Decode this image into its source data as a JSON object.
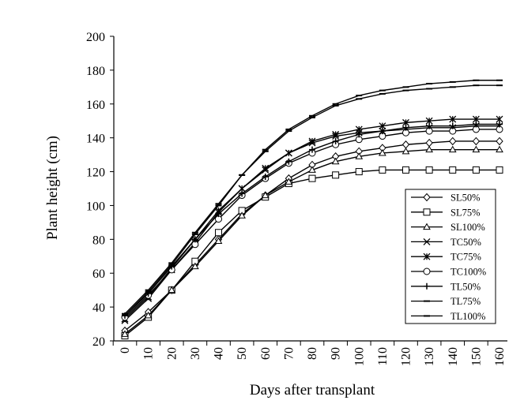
{
  "chart_data": {
    "type": "line",
    "title": "",
    "xlabel": "Days after transplant",
    "ylabel": "Plant height (cm)",
    "x": [
      0,
      10,
      20,
      30,
      40,
      50,
      60,
      70,
      80,
      90,
      100,
      110,
      120,
      130,
      140,
      150,
      160
    ],
    "x_tick_labels": [
      "0",
      "10",
      "20",
      "30",
      "40",
      "50",
      "60",
      "70",
      "80",
      "90",
      "100",
      "110",
      "120",
      "130",
      "140",
      "150",
      "160"
    ],
    "xlim": [
      0,
      160
    ],
    "ylim": [
      20,
      200
    ],
    "y_ticks": [
      20,
      40,
      60,
      80,
      100,
      120,
      140,
      160,
      180,
      200
    ],
    "y_tick_labels": [
      "20",
      "40",
      "60",
      "80",
      "100",
      "120",
      "140",
      "160",
      "180",
      "200"
    ],
    "grid": false,
    "legend_position": "right",
    "series": [
      {
        "name": "SL50%",
        "marker": "diamond",
        "values": [
          26,
          37,
          50,
          65,
          80,
          95,
          106,
          116,
          124,
          129,
          132,
          134,
          136,
          137,
          138,
          138,
          138
        ]
      },
      {
        "name": "SL75%",
        "marker": "square",
        "values": [
          23,
          34,
          50,
          67,
          84,
          97,
          105,
          113,
          116,
          118,
          120,
          121,
          121,
          121,
          121,
          121,
          121
        ]
      },
      {
        "name": "SL100%",
        "marker": "triangle",
        "values": [
          24,
          35,
          50,
          64,
          79,
          94,
          106,
          114,
          121,
          126,
          129,
          131,
          132,
          133,
          133,
          133,
          133
        ]
      },
      {
        "name": "TC50%",
        "marker": "x",
        "values": [
          32,
          45,
          62,
          78,
          96,
          110,
          121,
          131,
          137,
          141,
          143,
          144,
          145,
          146,
          146,
          147,
          147
        ]
      },
      {
        "name": "TC75%",
        "marker": "star",
        "values": [
          33,
          46,
          63,
          80,
          97,
          110,
          122,
          131,
          138,
          142,
          145,
          147,
          149,
          150,
          151,
          151,
          151
        ]
      },
      {
        "name": "TC100%",
        "marker": "circle",
        "values": [
          34,
          47,
          62,
          77,
          92,
          106,
          116,
          125,
          131,
          136,
          139,
          141,
          143,
          144,
          144,
          145,
          145
        ]
      },
      {
        "name": "TL50%",
        "marker": "plus",
        "values": [
          35,
          48,
          64,
          80,
          95,
          107,
          117,
          126,
          133,
          138,
          142,
          144,
          146,
          147,
          147,
          148,
          148
        ]
      },
      {
        "name": "TL75%",
        "marker": "dash",
        "values": [
          35,
          49,
          65,
          83,
          100,
          118,
          132,
          144,
          152,
          159,
          163,
          166,
          168,
          169,
          170,
          171,
          171
        ]
      },
      {
        "name": "TL100%",
        "marker": "dash",
        "values": [
          36,
          50,
          66,
          84,
          101,
          118,
          133,
          145,
          153,
          160,
          165,
          168,
          170,
          172,
          173,
          174,
          174
        ]
      }
    ]
  }
}
